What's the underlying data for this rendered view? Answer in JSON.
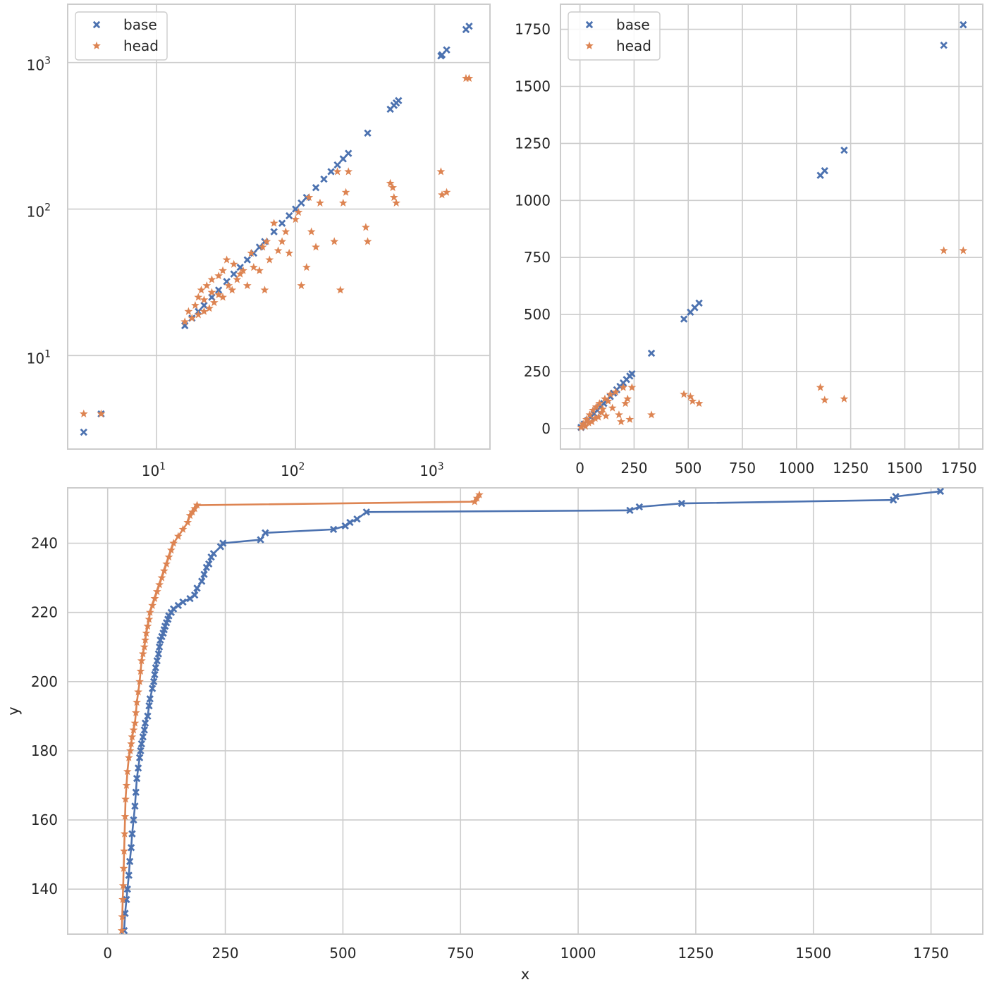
{
  "colors": {
    "base": "#4c72b0",
    "head": "#dd8452",
    "grid": "#cccccc",
    "frame": "#cccccc"
  },
  "chart_data": [
    {
      "type": "scatter",
      "scale": "log",
      "xlim": [
        2.3,
        2500
      ],
      "ylim": [
        2.3,
        2500
      ],
      "xticks": [
        10,
        100,
        1000
      ],
      "yticks": [
        10,
        100,
        1000
      ],
      "xtick_labels": [
        "10^1",
        "10^2",
        "10^3"
      ],
      "ytick_labels": [
        "10^1",
        "10^2",
        "10^3"
      ],
      "xlabel": "",
      "ylabel": "",
      "grid": true,
      "legend": {
        "placement": "top-left",
        "entries": [
          "base",
          "head"
        ]
      },
      "series": [
        {
          "name": "base",
          "marker": "x",
          "x": [
            3,
            4,
            16,
            18,
            20,
            22,
            25,
            28,
            32,
            36,
            40,
            45,
            50,
            55,
            60,
            70,
            80,
            90,
            100,
            110,
            120,
            140,
            160,
            180,
            200,
            220,
            240,
            330,
            480,
            510,
            530,
            550,
            1110,
            1130,
            1220,
            1680,
            1770
          ],
          "y": [
            3,
            4,
            16,
            18,
            20,
            22,
            25,
            28,
            32,
            36,
            40,
            45,
            50,
            55,
            60,
            70,
            80,
            90,
            100,
            110,
            120,
            140,
            160,
            180,
            200,
            220,
            240,
            330,
            480,
            510,
            530,
            550,
            1110,
            1130,
            1220,
            1680,
            1770
          ]
        },
        {
          "name": "head",
          "marker": "star",
          "x": [
            3,
            4,
            16,
            17,
            18,
            19,
            20,
            20,
            21,
            22,
            22,
            23,
            24,
            25,
            25,
            26,
            28,
            28,
            30,
            30,
            32,
            33,
            35,
            36,
            38,
            40,
            42,
            45,
            48,
            50,
            55,
            58,
            60,
            62,
            65,
            70,
            75,
            80,
            85,
            90,
            100,
            105,
            110,
            120,
            125,
            130,
            140,
            150,
            190,
            200,
            210,
            220,
            230,
            240,
            320,
            330,
            480,
            500,
            510,
            530,
            1110,
            1130,
            1220,
            1680,
            1770
          ],
          "y": [
            4,
            4,
            17,
            20,
            18,
            22,
            19,
            25,
            28,
            20,
            24,
            30,
            21,
            27,
            33,
            23,
            35,
            26,
            38,
            25,
            45,
            30,
            28,
            42,
            33,
            36,
            38,
            30,
            50,
            40,
            38,
            55,
            28,
            60,
            45,
            80,
            52,
            60,
            70,
            50,
            85,
            95,
            30,
            40,
            120,
            70,
            55,
            110,
            60,
            180,
            28,
            110,
            130,
            180,
            75,
            60,
            150,
            140,
            120,
            110,
            180,
            125,
            130,
            780,
            780
          ]
        }
      ]
    },
    {
      "type": "scatter",
      "scale": "linear",
      "xlim": [
        -90,
        1860
      ],
      "ylim": [
        -90,
        1860
      ],
      "xticks": [
        0,
        250,
        500,
        750,
        1000,
        1250,
        1500,
        1750
      ],
      "yticks": [
        0,
        250,
        500,
        750,
        1000,
        1250,
        1500,
        1750
      ],
      "xtick_labels": [
        "0",
        "250",
        "500",
        "750",
        "1000",
        "1250",
        "1500",
        "1750"
      ],
      "ytick_labels": [
        "0",
        "250",
        "500",
        "750",
        "1000",
        "1250",
        "1500",
        "1750"
      ],
      "xlabel": "",
      "ylabel": "",
      "grid": true,
      "legend": {
        "placement": "top-left",
        "entries": [
          "base",
          "head"
        ]
      },
      "series": [
        {
          "name": "base",
          "marker": "x",
          "x": [
            5,
            20,
            35,
            50,
            65,
            80,
            95,
            110,
            125,
            140,
            155,
            170,
            185,
            200,
            215,
            230,
            240,
            330,
            480,
            510,
            530,
            550,
            1110,
            1130,
            1220,
            1680,
            1770
          ],
          "y": [
            5,
            20,
            35,
            50,
            65,
            80,
            95,
            110,
            125,
            140,
            155,
            170,
            185,
            200,
            215,
            230,
            240,
            330,
            480,
            510,
            530,
            550,
            1110,
            1130,
            1220,
            1680,
            1770
          ]
        },
        {
          "name": "head",
          "marker": "star",
          "x": [
            5,
            15,
            25,
            30,
            40,
            45,
            55,
            60,
            70,
            75,
            85,
            90,
            100,
            105,
            115,
            120,
            130,
            140,
            150,
            165,
            180,
            190,
            200,
            210,
            220,
            230,
            240,
            330,
            480,
            510,
            520,
            550,
            1110,
            1130,
            1220,
            1680,
            1770
          ],
          "y": [
            5,
            20,
            10,
            40,
            25,
            60,
            30,
            80,
            45,
            95,
            50,
            110,
            70,
            85,
            130,
            55,
            120,
            150,
            90,
            160,
            60,
            30,
            180,
            110,
            130,
            40,
            180,
            60,
            150,
            140,
            120,
            110,
            180,
            125,
            130,
            780,
            780
          ]
        }
      ]
    },
    {
      "type": "line",
      "scale": "linear",
      "xlim": [
        -85,
        1860
      ],
      "ylim": [
        127,
        256
      ],
      "xticks": [
        0,
        250,
        500,
        750,
        1000,
        1250,
        1500,
        1750
      ],
      "yticks": [
        140,
        160,
        180,
        200,
        220,
        240
      ],
      "xtick_labels": [
        "0",
        "250",
        "500",
        "750",
        "1000",
        "1250",
        "1500",
        "1750"
      ],
      "ytick_labels": [
        "140",
        "160",
        "180",
        "200",
        "220",
        "240"
      ],
      "xlabel": "x",
      "ylabel": "y",
      "grid": true,
      "series": [
        {
          "name": "base",
          "marker": "x",
          "x": [
            35,
            37,
            40,
            42,
            45,
            47,
            50,
            52,
            55,
            58,
            60,
            62,
            65,
            68,
            70,
            72,
            75,
            78,
            80,
            85,
            88,
            90,
            95,
            98,
            100,
            102,
            105,
            108,
            110,
            112,
            115,
            118,
            120,
            122,
            125,
            128,
            130,
            135,
            140,
            150,
            160,
            175,
            185,
            190,
            200,
            205,
            210,
            215,
            220,
            225,
            240,
            245,
            325,
            335,
            480,
            505,
            515,
            530,
            550,
            1110,
            1130,
            1220,
            1670,
            1675,
            1770
          ],
          "y": [
            128,
            133,
            137,
            140,
            144,
            148,
            152,
            156,
            160,
            164,
            168,
            172,
            175,
            178,
            180,
            182,
            184,
            186,
            188,
            190,
            193,
            195,
            198,
            200,
            202,
            204,
            206,
            208,
            210,
            212,
            213,
            214,
            215,
            216,
            217,
            218,
            219,
            220,
            221,
            222,
            223,
            224,
            225,
            227,
            229,
            231,
            233,
            234,
            236,
            237,
            239,
            240,
            241,
            243,
            244,
            245,
            246,
            247,
            249,
            249.5,
            250.5,
            251.5,
            252.5,
            253.5,
            255
          ]
        },
        {
          "name": "head",
          "marker": "star",
          "x": [
            30,
            31,
            32,
            33,
            34,
            35,
            36,
            37,
            38,
            40,
            42,
            45,
            48,
            50,
            52,
            55,
            58,
            60,
            62,
            65,
            68,
            70,
            72,
            75,
            78,
            80,
            82,
            85,
            88,
            90,
            95,
            100,
            105,
            110,
            115,
            120,
            125,
            130,
            135,
            140,
            150,
            160,
            170,
            175,
            180,
            185,
            190,
            780,
            785,
            790
          ],
          "y": [
            128,
            132,
            137,
            141,
            146,
            151,
            156,
            161,
            166,
            170,
            174,
            178,
            180,
            182,
            184,
            186,
            188,
            191,
            194,
            197,
            200,
            203,
            206,
            208,
            210,
            212,
            214,
            216,
            218,
            220,
            222,
            224,
            226,
            228,
            230,
            232,
            234,
            236,
            238,
            240,
            242,
            244,
            246,
            248,
            249,
            250,
            251,
            252,
            253,
            254
          ]
        }
      ]
    }
  ]
}
